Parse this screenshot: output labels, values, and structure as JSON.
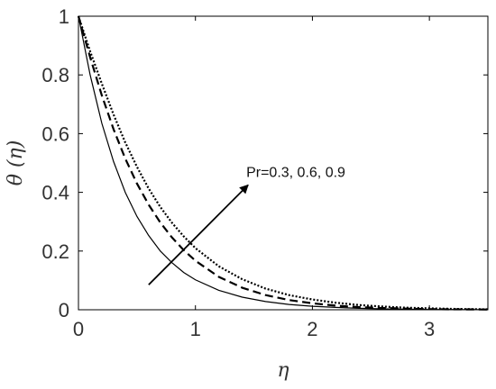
{
  "chart_data": {
    "type": "line",
    "title": "",
    "xlabel": "η",
    "ylabel": "θ (η)",
    "xlim": [
      0,
      3.5
    ],
    "ylim": [
      0,
      1
    ],
    "xticks": [
      "0",
      "1",
      "2",
      "3"
    ],
    "xtick_values": [
      0,
      1,
      2,
      3
    ],
    "yticks": [
      "0",
      "0.2",
      "0.4",
      "0.6",
      "0.8",
      "1"
    ],
    "ytick_values": [
      0,
      0.2,
      0.4,
      0.6,
      0.8,
      1
    ],
    "grid": false,
    "legend": "none",
    "x": [
      0,
      0.1,
      0.2,
      0.3,
      0.4,
      0.5,
      0.6,
      0.7,
      0.8,
      0.9,
      1.0,
      1.2,
      1.4,
      1.6,
      1.8,
      2.0,
      2.2,
      2.4,
      2.6,
      2.8,
      3.0,
      3.2,
      3.5
    ],
    "series": [
      {
        "style": "solid",
        "color": "#000000",
        "values": [
          1,
          0.8,
          0.635,
          0.505,
          0.4,
          0.318,
          0.253,
          0.2,
          0.16,
          0.127,
          0.102,
          0.066,
          0.043,
          0.028,
          0.018,
          0.012,
          0.008,
          0.005,
          0.003,
          0.002,
          0.001,
          0.0007,
          0.0003
        ]
      },
      {
        "style": "dashed",
        "color": "#000000",
        "values": [
          1,
          0.86,
          0.73,
          0.615,
          0.515,
          0.43,
          0.358,
          0.297,
          0.246,
          0.203,
          0.167,
          0.112,
          0.075,
          0.05,
          0.033,
          0.022,
          0.014,
          0.009,
          0.006,
          0.004,
          0.002,
          0.0015,
          0.0008
        ]
      },
      {
        "style": "dotted",
        "color": "#000000",
        "values": [
          1,
          0.88,
          0.77,
          0.665,
          0.57,
          0.487,
          0.413,
          0.35,
          0.296,
          0.25,
          0.21,
          0.148,
          0.104,
          0.072,
          0.05,
          0.035,
          0.024,
          0.016,
          0.011,
          0.007,
          0.005,
          0.003,
          0.0015
        ]
      }
    ],
    "annotation": {
      "text": "Pr=0.3, 0.6, 0.9",
      "arrow_from": [
        0.6,
        0.085
      ],
      "arrow_to": [
        1.45,
        0.425
      ]
    }
  }
}
